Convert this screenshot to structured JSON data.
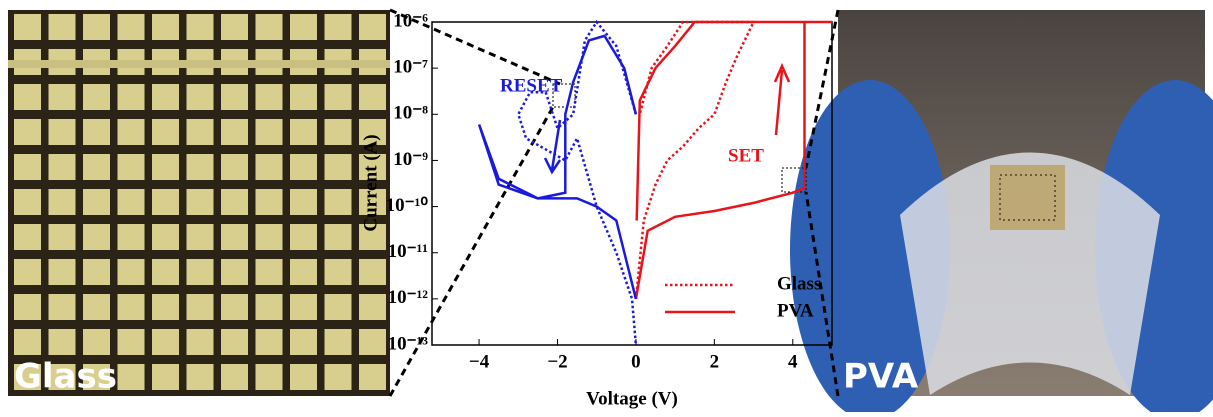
{
  "photos": {
    "left_label": "Glass",
    "right_label": "PVA"
  },
  "chart_data": {
    "type": "line",
    "x_label": "Voltage (V)",
    "y_label": "Current (A)",
    "log_y": true,
    "xlim": [
      -5.2,
      5.0
    ],
    "ylim": [
      1e-13,
      1e-06
    ],
    "xticks": [
      {
        "value": -4,
        "label": "−4"
      },
      {
        "value": -2,
        "label": "−2"
      },
      0,
      2,
      4
    ],
    "yticks": [
      {
        "value": 1e-13,
        "label": "10⁻¹³"
      },
      {
        "value": 1e-12,
        "label": "10⁻¹²"
      },
      {
        "value": 1e-11,
        "label": "10⁻¹¹"
      },
      {
        "value": 1e-10,
        "label": "10⁻¹⁰"
      },
      {
        "value": 1e-09,
        "label": "10⁻⁹"
      },
      {
        "value": 1e-08,
        "label": "10⁻⁸"
      },
      {
        "value": 1e-07,
        "label": "10⁻⁷"
      },
      {
        "value": 1e-06,
        "label": "10⁻⁶"
      }
    ],
    "annotations": [
      "RESET",
      "SET"
    ],
    "series": [
      {
        "name": "Glass",
        "color": "#e8141b",
        "style": "dotted",
        "x": [
          0,
          0.2,
          0.5,
          0.8,
          1.2,
          1.6,
          2.0,
          2.3,
          2.6,
          3.0,
          3.0,
          2.0,
          1.2,
          0.8,
          0.4,
          0.1
        ],
        "values": [
          1e-12,
          5e-11,
          3e-10,
          1e-09,
          2e-09,
          5e-09,
          1e-08,
          5e-08,
          2e-07,
          1e-06,
          1e-06,
          1e-06,
          1e-06,
          3e-07,
          1e-07,
          1e-08
        ]
      },
      {
        "name": "PVA",
        "color": "#e8141b",
        "style": "solid",
        "x": [
          0,
          0.3,
          1,
          2,
          3,
          4,
          4.3,
          4.3,
          4.6,
          5,
          1.5,
          1,
          0.5,
          0.1,
          0.02
        ],
        "values": [
          1e-12,
          3e-11,
          6e-11,
          8e-11,
          1.2e-10,
          2e-10,
          2.5e-10,
          1e-06,
          1e-06,
          1e-06,
          1e-06,
          3e-07,
          1e-07,
          2e-08,
          5e-11
        ]
      },
      {
        "color": "#1a1adf",
        "style": "dotted",
        "x": [
          0,
          -0.5,
          -1,
          -1.3,
          -1.6,
          -2,
          -2.3,
          -2.7,
          -3,
          -2.8,
          -1.8,
          -1.5,
          -1,
          -0.5,
          -0.1,
          0
        ],
        "values": [
          1e-08,
          3e-07,
          1e-06,
          4e-07,
          1e-08,
          5e-09,
          3e-08,
          3e-08,
          1e-08,
          3e-09,
          1e-09,
          3e-09,
          1e-10,
          1e-11,
          1e-12,
          1e-13
        ]
      },
      {
        "color": "#1a1adf",
        "style": "solid",
        "x": [
          0,
          -0.3,
          -0.8,
          -1.2,
          -1.6,
          -1.8,
          -1.8,
          -2.5,
          -3.5,
          -4,
          -4,
          -3.5,
          -2.5,
          -1.5,
          -1,
          -0.5,
          0
        ],
        "values": [
          1e-08,
          1e-07,
          5e-07,
          4e-07,
          5e-08,
          1e-08,
          2e-10,
          1.5e-10,
          3e-10,
          6e-09,
          6e-09,
          4e-10,
          1.5e-10,
          1.5e-10,
          1e-10,
          5e-11,
          1e-12
        ]
      }
    ]
  }
}
